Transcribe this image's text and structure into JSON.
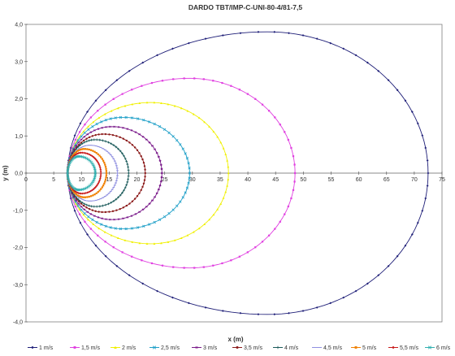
{
  "chart_data": {
    "type": "scatter",
    "title": "DARDO TBT/IMP-C-UNI-80-4/81-7,5",
    "xlabel": "x (m)",
    "ylabel": "y (m)",
    "xlim": [
      0,
      75
    ],
    "ylim": [
      -4,
      4
    ],
    "x_ticks": [
      "0",
      "5",
      "10",
      "15",
      "20",
      "25",
      "30",
      "35",
      "40",
      "45",
      "50",
      "55",
      "60",
      "65",
      "70",
      "75"
    ],
    "y_ticks": [
      "4,0",
      "3,0",
      "2,0",
      "1,0",
      "0,0",
      "-1,0",
      "-2,0",
      "-3,0",
      "-4,0"
    ],
    "grid": false,
    "legend_position": "bottom",
    "series": [
      {
        "name": "1 m/s",
        "color": "#1f1f78",
        "x0": 7.5,
        "apex_x": 43.5,
        "y_max": 3.8,
        "x_max": 72.5,
        "marker": "diamond"
      },
      {
        "name": "1,5 m/s",
        "color": "#e040e0",
        "x0": 7.5,
        "apex_x": 29.5,
        "y_max": 2.55,
        "x_max": 48.5,
        "marker": "square"
      },
      {
        "name": "2 m/s",
        "color": "#f0f000",
        "x0": 7.5,
        "apex_x": 22.5,
        "y_max": 1.9,
        "x_max": 36.5,
        "marker": "triangle"
      },
      {
        "name": "2,5 m/s",
        "color": "#20a0c8",
        "x0": 7.5,
        "apex_x": 17.5,
        "y_max": 1.5,
        "x_max": 29.5,
        "marker": "cross"
      },
      {
        "name": "3 m/s",
        "color": "#7a1a8a",
        "x0": 7.5,
        "apex_x": 15.5,
        "y_max": 1.25,
        "x_max": 24.5,
        "marker": "asterisk"
      },
      {
        "name": "3,5 m/s",
        "color": "#8b1a1a",
        "x0": 7.5,
        "apex_x": 14.0,
        "y_max": 1.05,
        "x_max": 21.5,
        "marker": "circle"
      },
      {
        "name": "4 m/s",
        "color": "#1a5a5a",
        "x0": 7.5,
        "apex_x": 12.5,
        "y_max": 0.9,
        "x_max": 18.5,
        "marker": "plus"
      },
      {
        "name": "4,5 m/s",
        "color": "#9090e0",
        "x0": 7.5,
        "apex_x": 11.5,
        "y_max": 0.75,
        "x_max": 16.5,
        "marker": "dash"
      },
      {
        "name": "5 m/s",
        "color": "#f08000",
        "x0": 7.5,
        "apex_x": 10.5,
        "y_max": 0.65,
        "x_max": 14.5,
        "marker": "square"
      },
      {
        "name": "5,5 m/s",
        "color": "#c81a1a",
        "x0": 7.5,
        "apex_x": 10.0,
        "y_max": 0.55,
        "x_max": 13.5,
        "marker": "diamond"
      },
      {
        "name": "6 m/s",
        "color": "#30b0b0",
        "x0": 7.5,
        "apex_x": 9.5,
        "y_max": 0.45,
        "x_max": 12.5,
        "marker": "cross"
      }
    ]
  }
}
